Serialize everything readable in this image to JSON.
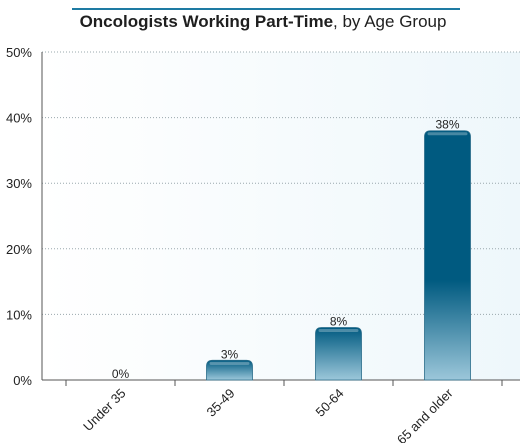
{
  "title": {
    "main": "Oncologists Working Part-Time",
    "suffix": ", by Age Group"
  },
  "colors": {
    "accent": "#1e7ba3",
    "bar_dark": "#005a80",
    "bar_light": "#9cc7da",
    "plot_bg": "#eef7fb",
    "grid": "#9aa8ad"
  },
  "chart_data": {
    "type": "bar",
    "title": "Oncologists Working Part-Time, by Age Group",
    "xlabel": "",
    "ylabel": "",
    "categories": [
      "Under 35",
      "35-49",
      "50-64",
      "65 and older"
    ],
    "values": [
      0,
      3,
      8,
      38
    ],
    "data_labels": [
      "0%",
      "3%",
      "8%",
      "38%"
    ],
    "ylim": [
      0,
      50
    ],
    "yticks": [
      0,
      10,
      20,
      30,
      40,
      50
    ],
    "ytick_labels": [
      "0%",
      "10%",
      "20%",
      "30%",
      "40%",
      "50%"
    ],
    "grid": true,
    "legend": "none"
  }
}
